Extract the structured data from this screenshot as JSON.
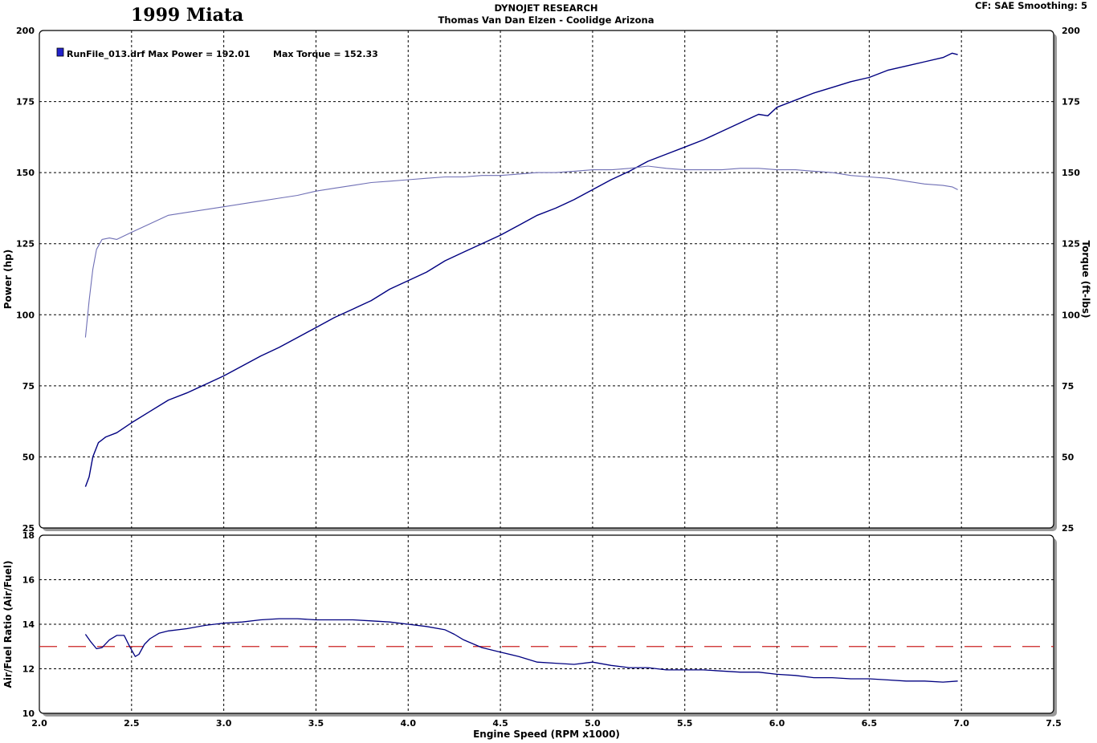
{
  "header": {
    "title": "1999 Miata",
    "line1": "DYNOJET RESEARCH",
    "line2": "Thomas Van Dan Elzen - Coolidge Arizona",
    "settings": "CF: SAE  Smoothing: 5"
  },
  "colors": {
    "power": "#000080",
    "torque": "#6f6fb5",
    "afr": "#000080",
    "afr_target": "#cc2222",
    "legend_swatch": "#2222cc"
  },
  "chart_data": [
    {
      "type": "line",
      "legend": "RunFile_013.drf Max Power = 192.01",
      "legend2": "Max Torque = 152.33",
      "ylabel": "Power (hp)",
      "y2label": "Torque (ft-lbs)",
      "ylim": [
        25,
        200
      ],
      "xlim": [
        2.0,
        7.5
      ],
      "yticks": [
        "200",
        "175",
        "150",
        "125",
        "100",
        "75",
        "50",
        "25"
      ],
      "y2ticks": [
        "200",
        "175",
        "150",
        "125",
        "100",
        "75",
        "50",
        "25"
      ],
      "grid": true,
      "legend_position": "top-left",
      "series": [
        {
          "key": "power",
          "x": [
            2.25,
            2.27,
            2.29,
            2.32,
            2.36,
            2.42,
            2.5,
            2.6,
            2.7,
            2.8,
            2.9,
            3.0,
            3.1,
            3.2,
            3.3,
            3.4,
            3.5,
            3.6,
            3.7,
            3.8,
            3.9,
            4.0,
            4.1,
            4.2,
            4.3,
            4.4,
            4.5,
            4.6,
            4.7,
            4.8,
            4.9,
            5.0,
            5.1,
            5.2,
            5.3,
            5.4,
            5.5,
            5.6,
            5.7,
            5.8,
            5.9,
            5.95,
            6.0,
            6.1,
            6.2,
            6.3,
            6.4,
            6.5,
            6.6,
            6.7,
            6.8,
            6.9,
            6.95,
            6.98
          ],
          "y": [
            39.5,
            43,
            50,
            55,
            57,
            58.5,
            62,
            66,
            70,
            72.5,
            75.5,
            78.5,
            82,
            85.5,
            88.5,
            92,
            95.5,
            99,
            102,
            105,
            109,
            112,
            115,
            119,
            122,
            125,
            128,
            131.5,
            135,
            137.5,
            140.5,
            144,
            147.5,
            150.5,
            154,
            156.5,
            159,
            161.5,
            164.5,
            167.5,
            170.5,
            170,
            173,
            175.5,
            178,
            180,
            182,
            183.5,
            186,
            187.5,
            189,
            190.5,
            192,
            191.5
          ]
        },
        {
          "key": "torque",
          "x": [
            2.25,
            2.27,
            2.29,
            2.31,
            2.34,
            2.38,
            2.42,
            2.5,
            2.6,
            2.7,
            2.8,
            2.9,
            3.0,
            3.1,
            3.2,
            3.3,
            3.4,
            3.5,
            3.6,
            3.7,
            3.8,
            3.9,
            4.0,
            4.1,
            4.2,
            4.3,
            4.4,
            4.5,
            4.6,
            4.7,
            4.8,
            4.9,
            5.0,
            5.1,
            5.2,
            5.3,
            5.4,
            5.5,
            5.6,
            5.7,
            5.8,
            5.9,
            6.0,
            6.1,
            6.2,
            6.3,
            6.4,
            6.5,
            6.6,
            6.7,
            6.8,
            6.9,
            6.95,
            6.98
          ],
          "y": [
            92,
            105,
            116,
            123,
            126.5,
            127,
            126.5,
            129,
            132,
            135,
            136,
            137,
            138,
            139,
            140,
            141,
            142,
            143.5,
            144.5,
            145.5,
            146.5,
            147,
            147.5,
            148,
            148.5,
            148.5,
            149,
            149,
            149.5,
            150,
            150,
            150.5,
            151,
            151,
            151.5,
            152.3,
            151.5,
            151,
            151,
            151,
            151.5,
            151.5,
            151,
            151,
            150.5,
            150,
            149,
            148.5,
            148,
            147,
            146,
            145.5,
            145,
            144
          ]
        }
      ]
    },
    {
      "type": "line",
      "ylabel": "Air/Fuel Ratio (Air/Fuel)",
      "xlabel": "Engine Speed (RPM x1000)",
      "ylim": [
        10,
        18
      ],
      "xlim": [
        2.0,
        7.5
      ],
      "yticks": [
        "18",
        "16",
        "14",
        "12",
        "10"
      ],
      "xticks": [
        "2.0",
        "2.5",
        "3.0",
        "3.5",
        "4.0",
        "4.5",
        "5.0",
        "5.5",
        "6.0",
        "6.5",
        "7.0",
        "7.5"
      ],
      "target_afr": 13.0,
      "grid": true,
      "series": [
        {
          "key": "afr",
          "x": [
            2.25,
            2.28,
            2.31,
            2.34,
            2.38,
            2.42,
            2.46,
            2.49,
            2.52,
            2.54,
            2.57,
            2.6,
            2.65,
            2.7,
            2.8,
            2.9,
            3.0,
            3.1,
            3.2,
            3.3,
            3.4,
            3.5,
            3.6,
            3.7,
            3.8,
            3.9,
            4.0,
            4.1,
            4.2,
            4.25,
            4.3,
            4.4,
            4.5,
            4.6,
            4.7,
            4.8,
            4.9,
            5.0,
            5.1,
            5.2,
            5.3,
            5.4,
            5.5,
            5.6,
            5.7,
            5.8,
            5.9,
            6.0,
            6.1,
            6.2,
            6.3,
            6.4,
            6.5,
            6.6,
            6.7,
            6.8,
            6.9,
            6.98
          ],
          "y": [
            13.55,
            13.2,
            12.9,
            12.95,
            13.3,
            13.5,
            13.5,
            13.0,
            12.55,
            12.65,
            13.1,
            13.35,
            13.6,
            13.7,
            13.8,
            13.95,
            14.05,
            14.1,
            14.2,
            14.25,
            14.25,
            14.2,
            14.2,
            14.2,
            14.15,
            14.1,
            14.0,
            13.9,
            13.75,
            13.55,
            13.3,
            12.95,
            12.75,
            12.55,
            12.3,
            12.25,
            12.2,
            12.3,
            12.15,
            12.05,
            12.05,
            11.95,
            11.95,
            11.95,
            11.9,
            11.85,
            11.85,
            11.75,
            11.7,
            11.6,
            11.6,
            11.55,
            11.55,
            11.5,
            11.45,
            11.45,
            11.4,
            11.45
          ]
        }
      ]
    }
  ]
}
